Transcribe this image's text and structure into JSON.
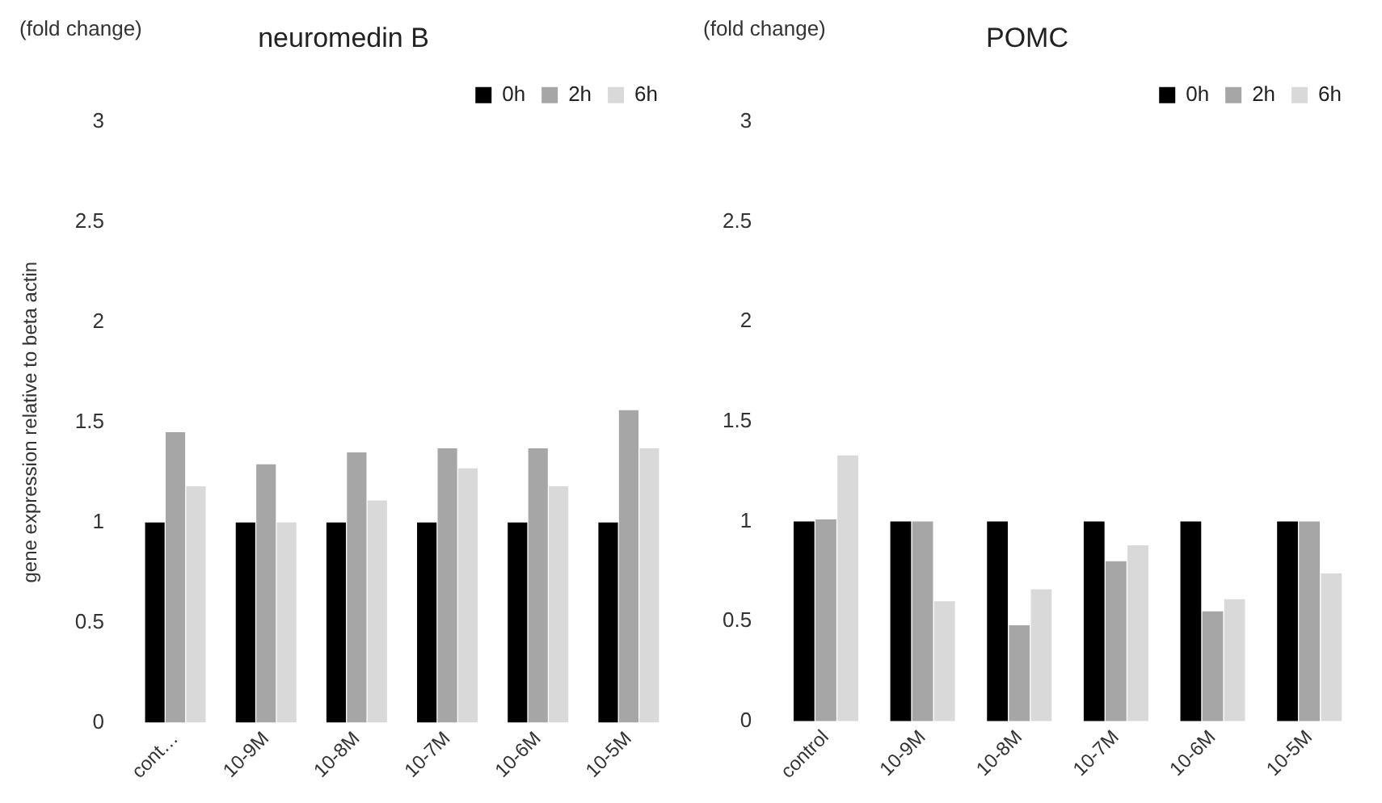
{
  "chart_data": [
    {
      "type": "bar",
      "title": "neuromedin B",
      "ylabel": "gene expression relative to beta actin",
      "annotations": [
        "(fold change)"
      ],
      "categories": [
        "cont…",
        "10-9M",
        "10-8M",
        "10-7M",
        "10-6M",
        "10-5M"
      ],
      "series": [
        {
          "name": "0h",
          "color": "#000000",
          "values": [
            1,
            1,
            1,
            1,
            1,
            1
          ]
        },
        {
          "name": "2h",
          "color": "#a6a6a6",
          "values": [
            1.45,
            1.29,
            1.35,
            1.37,
            1.37,
            1.56
          ]
        },
        {
          "name": "6h",
          "color": "#d9d9d9",
          "values": [
            1.18,
            1.0,
            1.11,
            1.27,
            1.18,
            1.37
          ]
        }
      ],
      "ylim": [
        0,
        3
      ],
      "yticks": [
        0,
        0.5,
        1,
        1.5,
        2,
        2.5,
        3
      ],
      "grid": false,
      "legend": "top right"
    },
    {
      "type": "bar",
      "title": "POMC",
      "annotations": [
        "(fold change)"
      ],
      "categories": [
        "control",
        "10-9M",
        "10-8M",
        "10-7M",
        "10-6M",
        "10-5M"
      ],
      "series": [
        {
          "name": "0h",
          "color": "#000000",
          "values": [
            1,
            1,
            1,
            1,
            1,
            1
          ]
        },
        {
          "name": "2h",
          "color": "#a6a6a6",
          "values": [
            1.01,
            1.0,
            0.48,
            0.8,
            0.55,
            1.0
          ]
        },
        {
          "name": "6h",
          "color": "#d9d9d9",
          "values": [
            1.33,
            0.6,
            0.66,
            0.88,
            0.61,
            0.74
          ]
        }
      ],
      "ylim": [
        0,
        3
      ],
      "yticks": [
        0,
        0.5,
        1,
        1.5,
        2,
        2.5,
        3
      ],
      "grid": false,
      "legend": "top right"
    }
  ]
}
